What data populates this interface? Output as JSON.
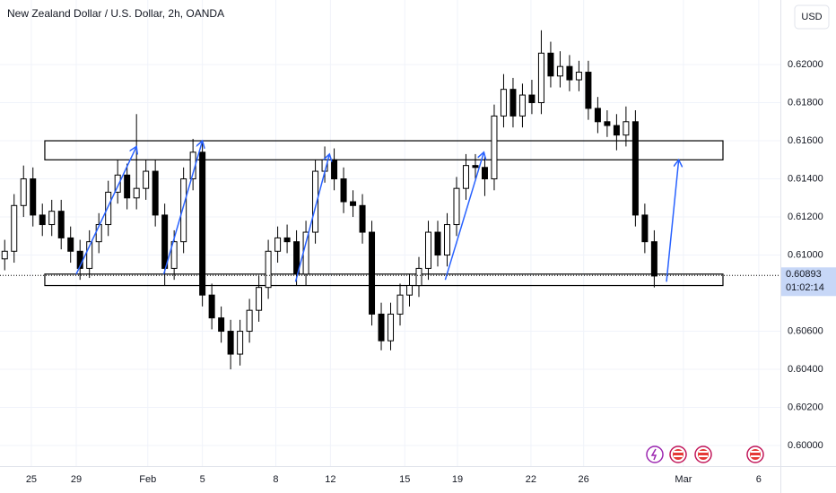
{
  "chart_data": {
    "type": "candlestick",
    "title": "New Zealand Dollar / U.S. Dollar, 2h, OANDA",
    "currency": "USD",
    "up_color": "#ffffff",
    "down_color": "#000000",
    "wick_color": "#000000",
    "grid": true,
    "open": [
      0.6098,
      0.6102,
      0.6126,
      0.614,
      0.6121,
      0.6116,
      0.6123,
      0.6109,
      0.6102,
      0.6093,
      0.6107,
      0.6116,
      0.6133,
      0.6142,
      0.613,
      0.6135,
      0.6144,
      0.6121,
      0.6093,
      0.6107,
      0.614,
      0.6154,
      0.6079,
      0.6067,
      0.606,
      0.6048,
      0.606,
      0.6071,
      0.6083,
      0.6102,
      0.6109,
      0.6107,
      0.609,
      0.6112,
      0.6144,
      0.615,
      0.614,
      0.6128,
      0.6126,
      0.6112,
      0.6069,
      0.6055,
      0.6069,
      0.6079,
      0.6084,
      0.6093,
      0.6112,
      0.61,
      0.6116,
      0.6135,
      0.6147,
      0.6146,
      0.614,
      0.6173,
      0.6187,
      0.6173,
      0.6184,
      0.618,
      0.6206,
      0.6194,
      0.6199,
      0.6192,
      0.6196,
      0.6177,
      0.617,
      0.6168,
      0.6163,
      0.617,
      0.6121,
      0.6107
    ],
    "high": [
      0.6108,
      0.6132,
      0.6147,
      0.6146,
      0.6127,
      0.6129,
      0.6129,
      0.6115,
      0.6108,
      0.6113,
      0.6122,
      0.6139,
      0.615,
      0.6148,
      0.6174,
      0.615,
      0.615,
      0.6127,
      0.6113,
      0.6146,
      0.6161,
      0.616,
      0.6085,
      0.6073,
      0.6066,
      0.6066,
      0.6077,
      0.6089,
      0.6108,
      0.6115,
      0.6116,
      0.6113,
      0.6118,
      0.615,
      0.6157,
      0.6156,
      0.6146,
      0.6134,
      0.6132,
      0.6118,
      0.6075,
      0.6075,
      0.6085,
      0.609,
      0.6099,
      0.6118,
      0.6118,
      0.6122,
      0.6141,
      0.6153,
      0.6153,
      0.6152,
      0.6179,
      0.6195,
      0.6193,
      0.619,
      0.6192,
      0.6218,
      0.6212,
      0.6207,
      0.6205,
      0.6202,
      0.6202,
      0.6183,
      0.6176,
      0.6174,
      0.6178,
      0.6176,
      0.6127,
      0.6113
    ],
    "low": [
      0.6092,
      0.6096,
      0.612,
      0.6115,
      0.611,
      0.611,
      0.6103,
      0.6096,
      0.6087,
      0.6088,
      0.6101,
      0.611,
      0.6127,
      0.6124,
      0.6124,
      0.6129,
      0.6115,
      0.6084,
      0.6087,
      0.6101,
      0.6134,
      0.6073,
      0.6061,
      0.6054,
      0.604,
      0.6042,
      0.6054,
      0.6065,
      0.6077,
      0.6096,
      0.6101,
      0.6084,
      0.6084,
      0.6106,
      0.6138,
      0.6134,
      0.6122,
      0.612,
      0.6106,
      0.6063,
      0.605,
      0.605,
      0.6063,
      0.6073,
      0.6078,
      0.6087,
      0.6094,
      0.6094,
      0.611,
      0.6129,
      0.614,
      0.6131,
      0.6134,
      0.6167,
      0.6167,
      0.6167,
      0.6174,
      0.6174,
      0.6188,
      0.6188,
      0.6186,
      0.6186,
      0.6171,
      0.6164,
      0.6162,
      0.6155,
      0.6157,
      0.6115,
      0.6101,
      0.6083
    ],
    "close": [
      0.6102,
      0.6126,
      0.614,
      0.6121,
      0.6116,
      0.6123,
      0.6109,
      0.6102,
      0.6093,
      0.6107,
      0.6116,
      0.6133,
      0.6142,
      0.613,
      0.6135,
      0.6144,
      0.6121,
      0.6093,
      0.6107,
      0.614,
      0.6154,
      0.6079,
      0.6067,
      0.606,
      0.6048,
      0.606,
      0.6071,
      0.6083,
      0.6102,
      0.6109,
      0.6107,
      0.609,
      0.6112,
      0.6144,
      0.615,
      0.614,
      0.6128,
      0.6126,
      0.6112,
      0.6069,
      0.6055,
      0.6069,
      0.6079,
      0.6084,
      0.6093,
      0.6112,
      0.61,
      0.6116,
      0.6135,
      0.6147,
      0.6146,
      0.614,
      0.6173,
      0.6187,
      0.6173,
      0.6184,
      0.618,
      0.6206,
      0.6194,
      0.6199,
      0.6192,
      0.6196,
      0.6177,
      0.617,
      0.6168,
      0.6163,
      0.617,
      0.6121,
      0.6107,
      0.6089
    ],
    "xlim": [
      -0.5,
      82.4
    ],
    "xticks": [
      {
        "value": 2.83,
        "label": "25"
      },
      {
        "value": 7.6,
        "label": "29"
      },
      {
        "value": 15.2,
        "label": "Feb"
      },
      {
        "value": 21.0,
        "label": "5"
      },
      {
        "value": 28.8,
        "label": "8"
      },
      {
        "value": 34.6,
        "label": "12"
      },
      {
        "value": 42.5,
        "label": "15"
      },
      {
        "value": 48.1,
        "label": "19"
      },
      {
        "value": 55.9,
        "label": "22"
      },
      {
        "value": 61.5,
        "label": "26"
      },
      {
        "value": 72.1,
        "label": "Mar"
      },
      {
        "value": 80.1,
        "label": "6"
      }
    ],
    "ylim": [
      0.59892,
      0.62339
    ],
    "yticks": [
      {
        "value": 0.62,
        "label": "0.62000"
      },
      {
        "value": 0.618,
        "label": "0.61800"
      },
      {
        "value": 0.616,
        "label": "0.61600"
      },
      {
        "value": 0.614,
        "label": "0.61400"
      },
      {
        "value": 0.612,
        "label": "0.61200"
      },
      {
        "value": 0.61,
        "label": "0.61000"
      },
      {
        "value": 0.606,
        "label": "0.60600"
      },
      {
        "value": 0.604,
        "label": "0.60400"
      },
      {
        "value": 0.602,
        "label": "0.60200"
      },
      {
        "value": 0.6,
        "label": "0.60000"
      }
    ],
    "last_price": {
      "value": 0.60893,
      "label": "0.60893"
    },
    "countdown": "01:02:14",
    "zones": [
      {
        "x0": 4.26,
        "x1": 76.3,
        "top": 0.616,
        "bottom": 0.615
      },
      {
        "x0": 4.26,
        "x1": 76.3,
        "top": 0.609,
        "bottom": 0.6084
      }
    ],
    "arrow_color": "#2962ff",
    "arrows": [
      {
        "x0": 7.6,
        "y0": 0.609,
        "x1": 14.0,
        "y1": 0.6157
      },
      {
        "x0": 16.9,
        "y0": 0.609,
        "x1": 21.0,
        "y1": 0.616
      },
      {
        "x0": 30.9,
        "y0": 0.6086,
        "x1": 34.5,
        "y1": 0.6153
      },
      {
        "x0": 46.8,
        "y0": 0.6087,
        "x1": 50.9,
        "y1": 0.6154
      },
      {
        "x0": 70.3,
        "y0": 0.6086,
        "x1": 71.6,
        "y1": 0.615
      }
    ]
  }
}
